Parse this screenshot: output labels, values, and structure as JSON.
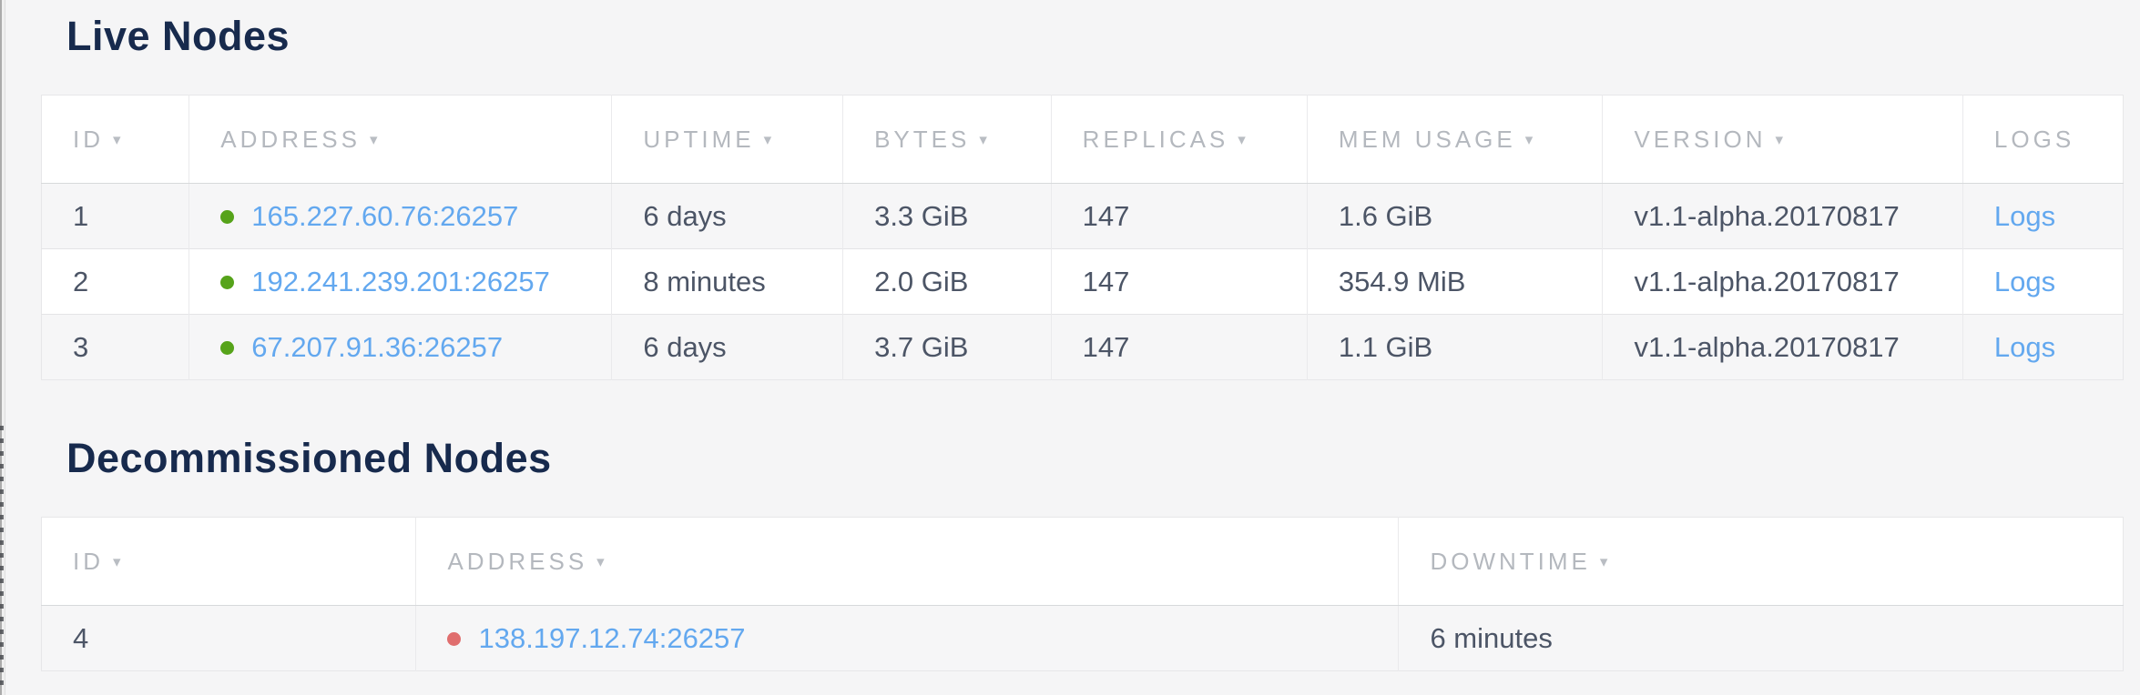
{
  "sort_indicator": "▾",
  "colors": {
    "heading": "#172a4d",
    "accent_link": "#63a8ef",
    "live_dot": "#56a31a",
    "decommissioned_dot": "#e06e6e"
  },
  "sections": {
    "live": {
      "title": "Live Nodes",
      "columns": [
        {
          "label": "ID",
          "sortable": true
        },
        {
          "label": "ADDRESS",
          "sortable": true
        },
        {
          "label": "UPTIME",
          "sortable": true
        },
        {
          "label": "BYTES",
          "sortable": true
        },
        {
          "label": "REPLICAS",
          "sortable": true
        },
        {
          "label": "MEM USAGE",
          "sortable": true
        },
        {
          "label": "VERSION",
          "sortable": true
        },
        {
          "label": "LOGS",
          "sortable": false
        }
      ],
      "rows": [
        {
          "id": "1",
          "status": "live",
          "address": "165.227.60.76:26257",
          "uptime": "6 days",
          "bytes": "3.3 GiB",
          "replicas": "147",
          "mem_usage": "1.6 GiB",
          "version": "v1.1-alpha.20170817",
          "logs": "Logs"
        },
        {
          "id": "2",
          "status": "live",
          "address": "192.241.239.201:26257",
          "uptime": "8 minutes",
          "bytes": "2.0 GiB",
          "replicas": "147",
          "mem_usage": "354.9 MiB",
          "version": "v1.1-alpha.20170817",
          "logs": "Logs"
        },
        {
          "id": "3",
          "status": "live",
          "address": "67.207.91.36:26257",
          "uptime": "6 days",
          "bytes": "3.7 GiB",
          "replicas": "147",
          "mem_usage": "1.1 GiB",
          "version": "v1.1-alpha.20170817",
          "logs": "Logs"
        }
      ]
    },
    "decommissioned": {
      "title": "Decommissioned Nodes",
      "columns": [
        {
          "label": "ID",
          "sortable": true
        },
        {
          "label": "ADDRESS",
          "sortable": true
        },
        {
          "label": "DOWNTIME",
          "sortable": true
        }
      ],
      "rows": [
        {
          "id": "4",
          "status": "decommissioned",
          "address": "138.197.12.74:26257",
          "downtime": "6 minutes"
        }
      ]
    }
  }
}
